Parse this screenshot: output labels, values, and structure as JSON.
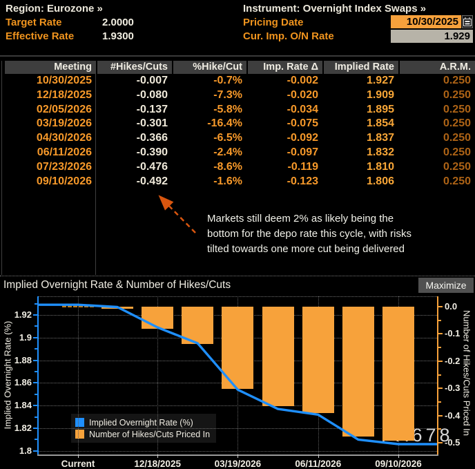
{
  "app": {
    "region_selector": "Region: Eurozone »",
    "instrument_selector": "Instrument: Overnight Index Swaps »",
    "target_rate_label": "Target Rate",
    "target_rate_value": "2.0000",
    "effective_rate_label": "Effective Rate",
    "effective_rate_value": "1.9300",
    "pricing_date_label": "Pricing Date",
    "pricing_date_value": "10/30/2025",
    "cur_imp_rate_label": "Cur. Imp. O/N Rate",
    "cur_imp_rate_value": "1.929"
  },
  "table": {
    "columns": [
      "Meeting",
      "#Hikes/Cuts",
      "%Hike/Cut",
      "Imp. Rate Δ",
      "Implied Rate",
      "A.R.M."
    ],
    "rows": [
      [
        "10/30/2025",
        "-0.007",
        "-0.7%",
        "-0.002",
        "1.927",
        "0.250"
      ],
      [
        "12/18/2025",
        "-0.080",
        "-7.3%",
        "-0.020",
        "1.909",
        "0.250"
      ],
      [
        "02/05/2026",
        "-0.137",
        "-5.8%",
        "-0.034",
        "1.895",
        "0.250"
      ],
      [
        "03/19/2026",
        "-0.301",
        "-16.4%",
        "-0.075",
        "1.854",
        "0.250"
      ],
      [
        "04/30/2026",
        "-0.366",
        "-6.5%",
        "-0.092",
        "1.837",
        "0.250"
      ],
      [
        "06/11/2026",
        "-0.390",
        "-2.4%",
        "-0.097",
        "1.832",
        "0.250"
      ],
      [
        "07/23/2026",
        "-0.476",
        "-8.6%",
        "-0.119",
        "1.810",
        "0.250"
      ],
      [
        "09/10/2026",
        "-0.492",
        "-1.6%",
        "-0.123",
        "1.806",
        "0.250"
      ]
    ]
  },
  "annotation": {
    "text": "Markets still deem 2% as likely being the\nbottom for the depo rate this cycle, with risks\ntilted towards one more cut being delivered"
  },
  "chart": {
    "title": "Implied Overnight Rate & Number of Hikes/Cuts",
    "maximize_label": "Maximize",
    "watermark": "FX678"
  },
  "chart_data": {
    "type": "bar+line",
    "categories": [
      "10/30/2025",
      "12/18/2025",
      "02/05/2026",
      "03/19/2026",
      "04/30/2026",
      "06/11/2026",
      "07/23/2026",
      "09/10/2026"
    ],
    "x_axis": {
      "tick_labels": [
        "Current",
        "12/18/2025",
        "03/19/2026",
        "06/11/2026",
        "09/10/2026"
      ]
    },
    "series": [
      {
        "name": "Implied Overnight Rate (%)",
        "type": "line",
        "axis": "left",
        "color": "#1f8ffc",
        "x": [
          "Current",
          "10/30/2025",
          "12/18/2025",
          "02/05/2026",
          "03/19/2026",
          "04/30/2026",
          "06/11/2026",
          "07/23/2026",
          "09/10/2026"
        ],
        "values": [
          1.929,
          1.927,
          1.909,
          1.895,
          1.854,
          1.837,
          1.832,
          1.81,
          1.806
        ]
      },
      {
        "name": "Number of Hikes/Cuts Priced In",
        "type": "bar",
        "axis": "right",
        "color": "#f7a23b",
        "values": [
          -0.007,
          -0.08,
          -0.137,
          -0.301,
          -0.366,
          -0.39,
          -0.476,
          -0.492
        ]
      }
    ],
    "left_axis": {
      "label": "Implied Overnight Rate (%)",
      "color": "#1f8ffc",
      "ticks": [
        "1.92",
        "1.9",
        "1.88",
        "1.86",
        "1.84",
        "1.82",
        "1.8"
      ],
      "range": [
        1.937,
        1.797
      ]
    },
    "right_axis": {
      "label": "Number of Hikes/Cuts Priced In",
      "color": "#f7a23b",
      "ticks": [
        "0.0",
        "-0.1",
        "-0.2",
        "-0.3",
        "-0.4",
        "-0.5"
      ],
      "range": [
        0.05,
        -0.55
      ]
    },
    "legend": {
      "position": "bottom-left",
      "entries": [
        "Implied Overnight Rate (%)",
        "Number of Hikes/Cuts Priced In"
      ]
    },
    "grid": true
  }
}
